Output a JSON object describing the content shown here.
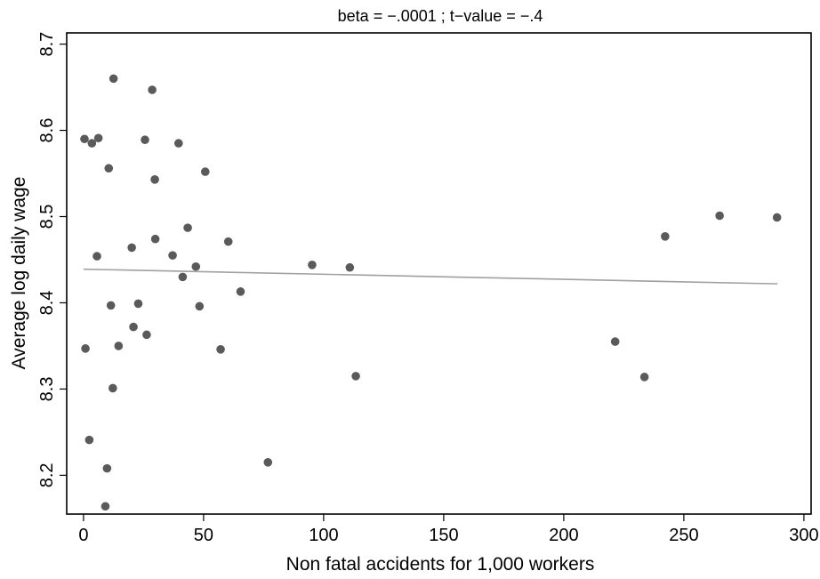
{
  "chart_data": {
    "type": "scatter",
    "title": "beta = −.0001 ; t−value = −.4",
    "xlabel": "Non fatal accidents for 1,000 workers",
    "ylabel": "Average log daily wage",
    "xlim": [
      -7,
      303
    ],
    "ylim": [
      8.155,
      8.713
    ],
    "x_ticks": [
      0,
      50,
      100,
      150,
      200,
      250,
      300
    ],
    "y_ticks": [
      8.2,
      8.3,
      8.4,
      8.5,
      8.6,
      8.7
    ],
    "x_tick_labels": [
      "0",
      "50",
      "100",
      "150",
      "200",
      "250",
      "300"
    ],
    "y_tick_labels": [
      "8.2",
      "8.3",
      "8.4",
      "8.5",
      "8.6",
      "8.7"
    ],
    "grid": false,
    "legend": "none",
    "colors": {
      "points": "#5a5a5a",
      "fit_line": "#a0a0a0",
      "axes": "#000000"
    },
    "series": [
      {
        "points": [
          {
            "x": 0.4,
            "y": 8.59
          },
          {
            "x": 3.5,
            "y": 8.585
          },
          {
            "x": 6.2,
            "y": 8.591
          },
          {
            "x": 12.5,
            "y": 8.66
          },
          {
            "x": 10.5,
            "y": 8.556
          },
          {
            "x": 5.6,
            "y": 8.454
          },
          {
            "x": 0.8,
            "y": 8.347
          },
          {
            "x": 2.4,
            "y": 8.241
          },
          {
            "x": 9.1,
            "y": 8.164
          },
          {
            "x": 9.8,
            "y": 8.208
          },
          {
            "x": 11.4,
            "y": 8.397
          },
          {
            "x": 12.2,
            "y": 8.301
          },
          {
            "x": 14.6,
            "y": 8.35
          },
          {
            "x": 20.1,
            "y": 8.464
          },
          {
            "x": 20.8,
            "y": 8.372
          },
          {
            "x": 22.8,
            "y": 8.399
          },
          {
            "x": 25.6,
            "y": 8.589
          },
          {
            "x": 26.3,
            "y": 8.363
          },
          {
            "x": 28.6,
            "y": 8.647
          },
          {
            "x": 29.7,
            "y": 8.543
          },
          {
            "x": 29.9,
            "y": 8.474
          },
          {
            "x": 37.1,
            "y": 8.455
          },
          {
            "x": 39.6,
            "y": 8.585
          },
          {
            "x": 41.3,
            "y": 8.43
          },
          {
            "x": 43.4,
            "y": 8.487
          },
          {
            "x": 46.8,
            "y": 8.442
          },
          {
            "x": 48.3,
            "y": 8.396
          },
          {
            "x": 50.7,
            "y": 8.552
          },
          {
            "x": 57.1,
            "y": 8.346
          },
          {
            "x": 60.3,
            "y": 8.471
          },
          {
            "x": 65.4,
            "y": 8.413
          },
          {
            "x": 76.8,
            "y": 8.215
          },
          {
            "x": 95.2,
            "y": 8.444
          },
          {
            "x": 110.9,
            "y": 8.441
          },
          {
            "x": 113.4,
            "y": 8.315
          },
          {
            "x": 221.4,
            "y": 8.355
          },
          {
            "x": 233.6,
            "y": 8.314
          },
          {
            "x": 242.2,
            "y": 8.477
          },
          {
            "x": 264.9,
            "y": 8.501
          },
          {
            "x": 288.8,
            "y": 8.499
          }
        ]
      }
    ],
    "fit_line": {
      "x": [
        0,
        289
      ],
      "y": [
        8.439,
        8.422
      ]
    }
  }
}
